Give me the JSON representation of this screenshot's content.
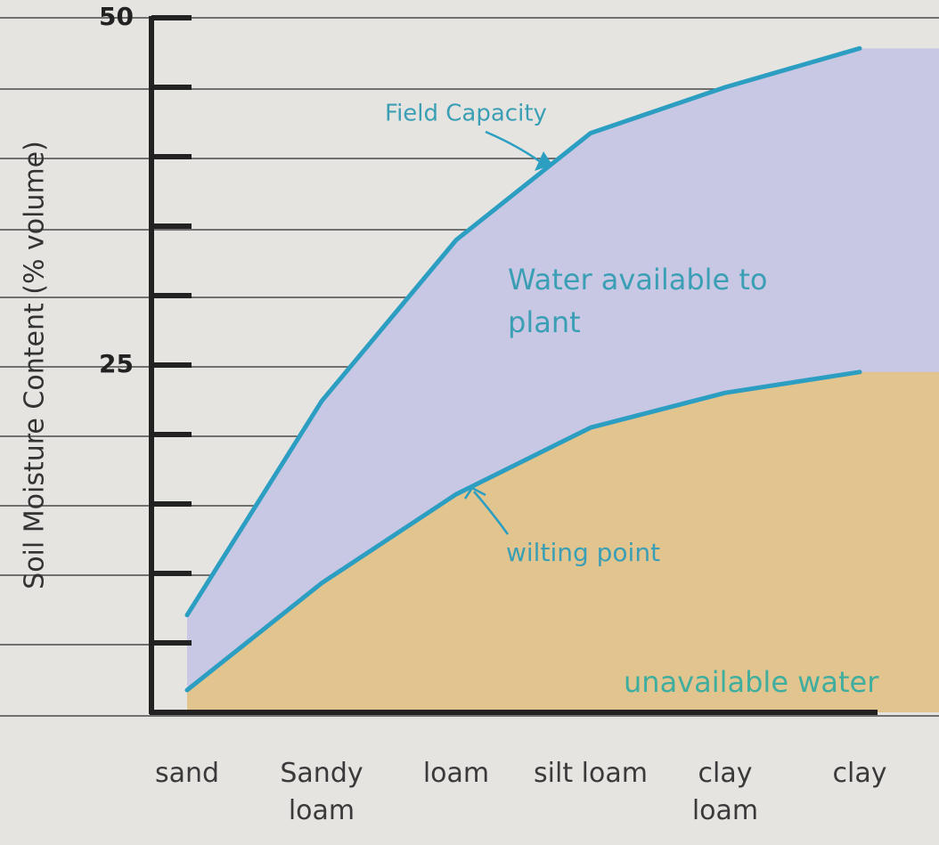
{
  "chart_data": {
    "type": "line",
    "y_label": "Soil Moisture Content (% volume)",
    "categories": [
      "sand",
      "Sandy loam",
      "loam",
      "silt loam",
      "clay loam",
      "clay"
    ],
    "series": [
      {
        "name": "Field Capacity",
        "color": "#2b9ec1",
        "fill": "#c8c7e4",
        "values": [
          7,
          22.4,
          34,
          41.7,
          45,
          47.8
        ]
      },
      {
        "name": "wilting point",
        "color": "#2b9ec1",
        "fill": "#e2c48f",
        "values": [
          1.6,
          9.3,
          15.7,
          20.5,
          23,
          24.5
        ]
      }
    ],
    "annotations": [
      "Water available to plant",
      "unavailable water"
    ],
    "ylim": [
      0,
      50
    ],
    "yticks": [
      25,
      50
    ],
    "minor_yticks": [
      5,
      10,
      15,
      20,
      30,
      35,
      40,
      45
    ]
  }
}
